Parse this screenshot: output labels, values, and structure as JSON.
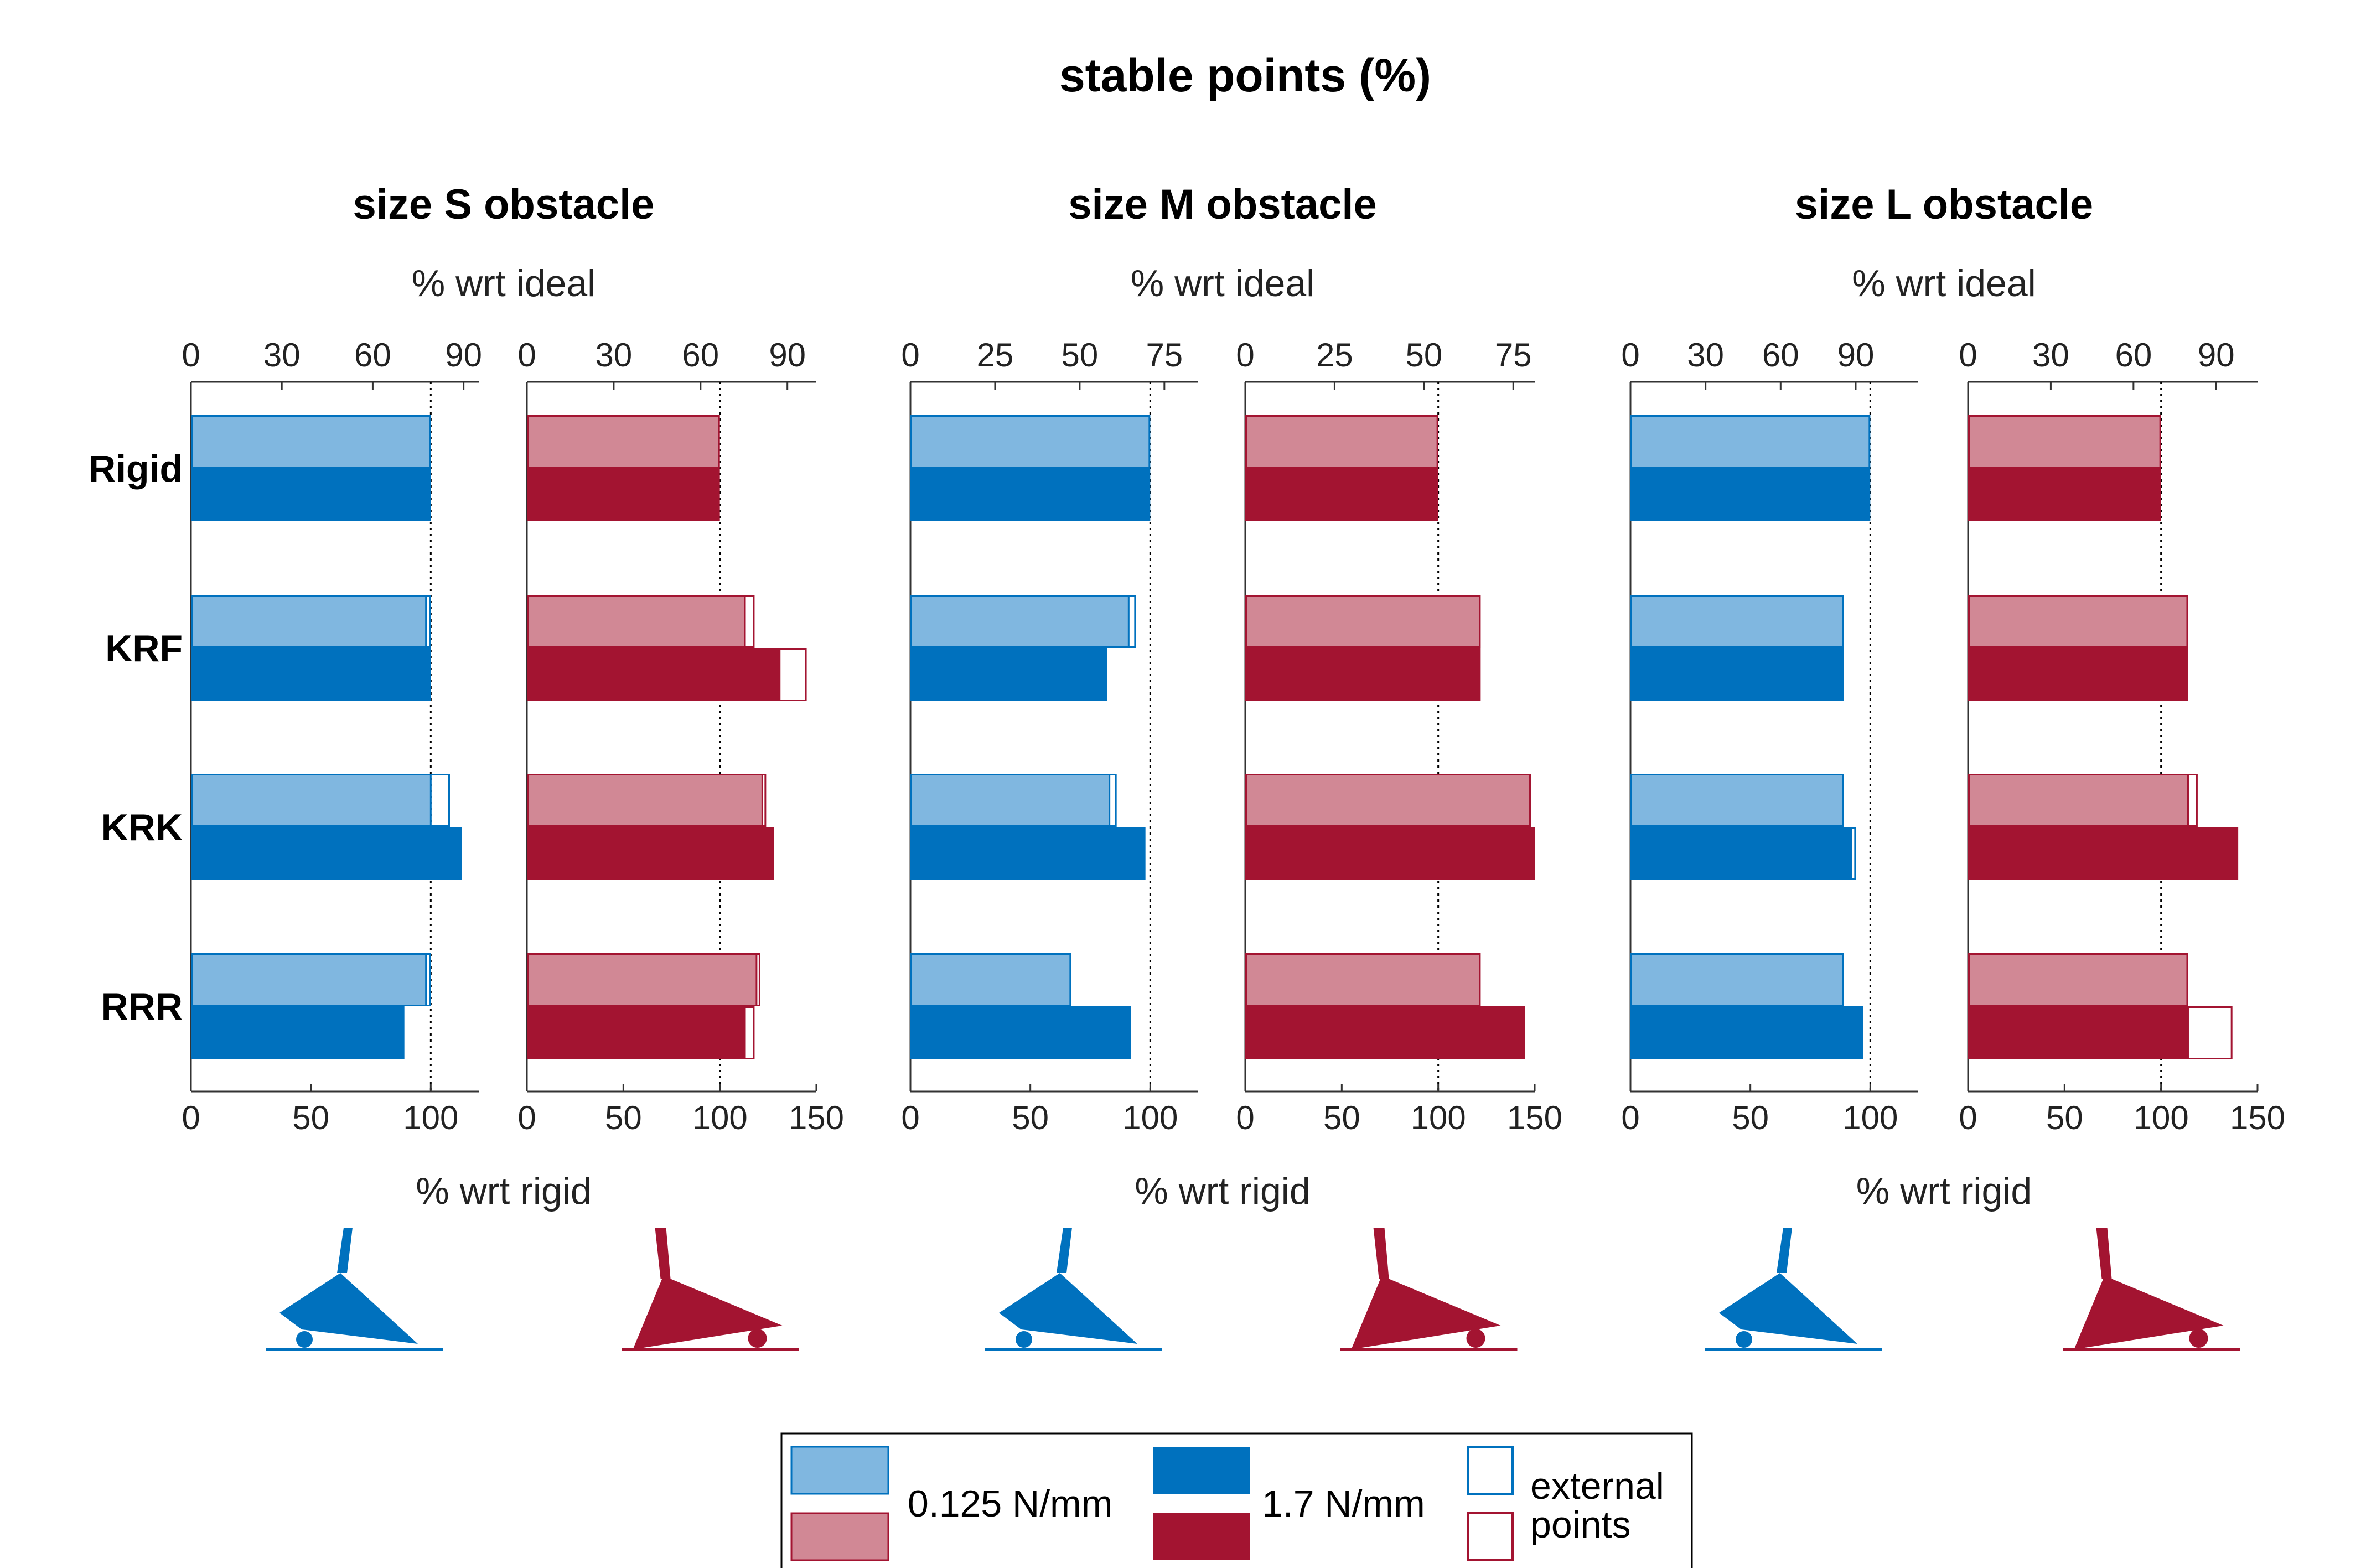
{
  "chart_data": {
    "type": "bar",
    "title": "stable points (%)",
    "categories": [
      "Rigid",
      "KRF",
      "KRK",
      "RRR"
    ],
    "top_axis_label": "% wrt ideal",
    "bottom_axis_label": "% wrt rigid",
    "colors": {
      "blue_light": "#80b7e0",
      "blue_dark": "#0071be",
      "red_light": "#d18895",
      "red_dark": "#a31431",
      "blue_edge": "#0071be",
      "red_edge": "#a31431"
    },
    "legend": {
      "light_label": "0.125 N/mm",
      "dark_label": "1.7 N/mm",
      "external_label_line1": "external",
      "external_label_line2": "points"
    },
    "groups": [
      {
        "title": "size S obstacle",
        "panels": [
          {
            "color": "blue",
            "bottom_range": [
              0,
              120
            ],
            "bottom_ticks": [
              "0",
              "50",
              "100"
            ],
            "top_range": [
              0,
              95
            ],
            "top_ticks": [
              "0",
              "30",
              "60",
              "90"
            ],
            "light_values": [
              100,
              98,
              100,
              98
            ],
            "light_outline": [
              100,
              100,
              108,
              100
            ],
            "dark_values": [
              100,
              100,
              113,
              89
            ],
            "dark_outline": [
              100,
              100,
              113,
              89
            ]
          },
          {
            "color": "red",
            "bottom_range": [
              0,
              150
            ],
            "bottom_ticks": [
              "0",
              "50",
              "100",
              "150"
            ],
            "top_range": [
              0,
              100
            ],
            "top_ticks": [
              "0",
              "30",
              "60",
              "90"
            ],
            "light_values": [
              100,
              113,
              122,
              119
            ],
            "light_outline": [
              100,
              118,
              124,
              121
            ],
            "dark_values": [
              100,
              131,
              128,
              113
            ],
            "dark_outline": [
              100,
              145,
              128,
              118
            ]
          }
        ]
      },
      {
        "title": "size M obstacle",
        "panels": [
          {
            "color": "blue",
            "bottom_range": [
              0,
              120
            ],
            "bottom_ticks": [
              "0",
              "50",
              "100"
            ],
            "top_range": [
              0,
              85
            ],
            "top_ticks": [
              "0",
              "25",
              "50",
              "75"
            ],
            "light_values": [
              100,
              91,
              83,
              67
            ],
            "light_outline": [
              100,
              94,
              86,
              67
            ],
            "dark_values": [
              100,
              82,
              98,
              92
            ],
            "dark_outline": [
              100,
              82,
              98,
              92
            ]
          },
          {
            "color": "red",
            "bottom_range": [
              0,
              150
            ],
            "bottom_ticks": [
              "0",
              "50",
              "100",
              "150"
            ],
            "top_range": [
              0,
              81
            ],
            "top_ticks": [
              "0",
              "25",
              "50",
              "75"
            ],
            "light_values": [
              100,
              122,
              148,
              122
            ],
            "light_outline": [
              100,
              122,
              148,
              122
            ],
            "dark_values": [
              100,
              122,
              150,
              145
            ],
            "dark_outline": [
              100,
              122,
              150,
              145
            ]
          }
        ]
      },
      {
        "title": "size L obstacle",
        "panels": [
          {
            "color": "blue",
            "bottom_range": [
              0,
              120
            ],
            "bottom_ticks": [
              "0",
              "50",
              "100"
            ],
            "top_range": [
              0,
              115
            ],
            "top_ticks": [
              "0",
              "30",
              "60",
              "90"
            ],
            "light_values": [
              100,
              89,
              89,
              89
            ],
            "light_outline": [
              100,
              89,
              89,
              89
            ],
            "dark_values": [
              100,
              89,
              92,
              97
            ],
            "dark_outline": [
              100,
              89,
              94,
              97
            ]
          },
          {
            "color": "red",
            "bottom_range": [
              0,
              150
            ],
            "bottom_ticks": [
              "0",
              "50",
              "100",
              "150"
            ],
            "top_range": [
              0,
              105
            ],
            "top_ticks": [
              "0",
              "30",
              "60",
              "90"
            ],
            "light_values": [
              100,
              114,
              114,
              114
            ],
            "light_outline": [
              100,
              114,
              119,
              114
            ],
            "dark_values": [
              100,
              114,
              140,
              114
            ],
            "dark_outline": [
              100,
              114,
              140,
              137
            ]
          }
        ]
      }
    ]
  }
}
